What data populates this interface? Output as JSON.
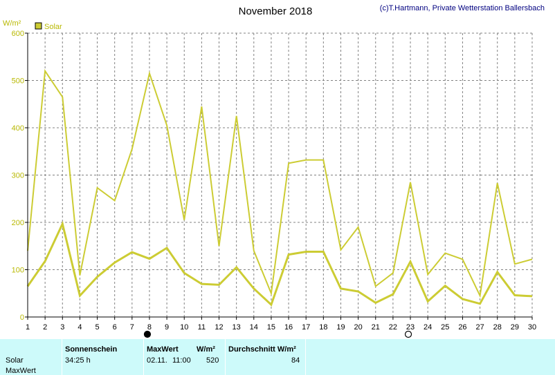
{
  "title": "November 2018",
  "credit": "(c)T.Hartmann, Private Wetterstation Ballersbach",
  "unit_label": "W/m²",
  "colors": {
    "series": "#cccc33",
    "label": "#b8b800",
    "grid": "#808080",
    "axis": "#000000",
    "table_bg": "#cdfafa"
  },
  "chart_data": {
    "type": "line",
    "title": "November 2018",
    "ylabel": "W/m²",
    "ylim": [
      0,
      600
    ],
    "yticks": [
      "0",
      "100",
      "200",
      "300",
      "400",
      "500",
      "600"
    ],
    "x": [
      "1",
      "2",
      "3",
      "4",
      "5",
      "6",
      "7",
      "8",
      "9",
      "10",
      "11",
      "12",
      "13",
      "14",
      "15",
      "16",
      "17",
      "18",
      "19",
      "20",
      "21",
      "22",
      "23",
      "24",
      "25",
      "26",
      "27",
      "28",
      "29",
      "30"
    ],
    "grid": true,
    "legend": "top-left",
    "series": [
      {
        "name": "Solar",
        "style": "max",
        "values": [
          140,
          520,
          465,
          88,
          273,
          246,
          355,
          515,
          405,
          205,
          445,
          150,
          425,
          140,
          50,
          325,
          332,
          332,
          142,
          190,
          65,
          93,
          285,
          90,
          135,
          122,
          45,
          283,
          112,
          122
        ]
      },
      {
        "name": "",
        "style": "mean",
        "values": [
          65,
          118,
          197,
          45,
          85,
          115,
          137,
          123,
          146,
          93,
          70,
          68,
          105,
          60,
          26,
          132,
          138,
          138,
          60,
          54,
          30,
          48,
          117,
          33,
          66,
          38,
          28,
          95,
          46,
          44
        ]
      }
    ],
    "markers": [
      {
        "day": "8",
        "symbol": "full-moon"
      },
      {
        "day": "23",
        "symbol": "new-moon"
      }
    ]
  },
  "table": {
    "row_labels": [
      "Solar",
      "MaxWert"
    ],
    "sonnenschein_header": "Sonnenschein",
    "sonnenschein_value": "34:25 h",
    "maxwert_header": "MaxWert",
    "maxwert_unit": "W/m²",
    "maxwert_date": "02.11.",
    "maxwert_time": "11:00",
    "maxwert_value": "520",
    "avg_header": "Durchschnitt W/m²",
    "avg_value": "84"
  }
}
